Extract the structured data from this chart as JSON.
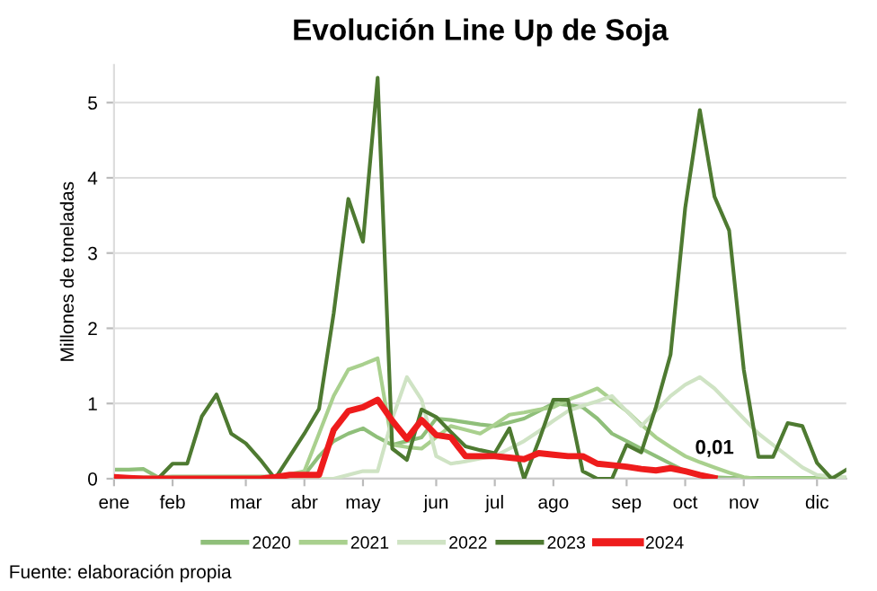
{
  "chart_data": {
    "type": "line",
    "title": "Evolución Line Up de Soja",
    "ylabel": "Millones de toneladas",
    "categories": [
      "ene",
      null,
      null,
      null,
      "feb",
      null,
      null,
      null,
      null,
      "mar",
      null,
      null,
      null,
      "abr",
      null,
      null,
      null,
      "may",
      null,
      null,
      null,
      null,
      "jun",
      null,
      null,
      null,
      "jul",
      null,
      null,
      null,
      "ago",
      null,
      null,
      null,
      null,
      "sep",
      null,
      null,
      null,
      "oct",
      null,
      null,
      null,
      "nov",
      null,
      null,
      null,
      null,
      "dic",
      null,
      null
    ],
    "ylim": [
      0,
      5.5
    ],
    "yticks": [
      0,
      1,
      2,
      3,
      4,
      5
    ],
    "grid": "y",
    "legend": "bottom",
    "marker": "none",
    "series": [
      {
        "name": "2020",
        "color": "#8fbf7a",
        "values": [
          0.12,
          0.12,
          0.13,
          0.02,
          0.03,
          0.03,
          0.03,
          0.03,
          0.03,
          0.03,
          0.03,
          0.03,
          0.03,
          0.05,
          0.3,
          0.5,
          0.6,
          0.67,
          0.55,
          0.45,
          0.5,
          0.55,
          0.8,
          0.78,
          0.75,
          0.72,
          0.7,
          0.75,
          0.8,
          0.9,
          1.0,
          0.98,
          0.95,
          0.8,
          0.6,
          0.5,
          0.4,
          0.3,
          0.2,
          0.1,
          0.05,
          0.02,
          0.01,
          0.01,
          0.01,
          0.01,
          0.01,
          0.01,
          0.01,
          0.01,
          0.01
        ]
      },
      {
        "name": "2021",
        "color": "#a9d08e",
        "values": [
          0.02,
          0.02,
          0.02,
          0.02,
          0.02,
          0.02,
          0.02,
          0.02,
          0.02,
          0.02,
          0.02,
          0.02,
          0.06,
          0.1,
          0.6,
          1.1,
          1.45,
          1.52,
          1.6,
          0.45,
          0.42,
          0.4,
          0.55,
          0.7,
          0.65,
          0.6,
          0.72,
          0.85,
          0.88,
          0.92,
          0.95,
          1.05,
          1.12,
          1.2,
          1.05,
          0.9,
          0.72,
          0.55,
          0.42,
          0.3,
          0.22,
          0.15,
          0.08,
          0.02,
          0,
          0,
          0,
          0,
          0,
          0,
          0
        ]
      },
      {
        "name": "2022",
        "color": "#cfe3c4",
        "values": [
          0.02,
          0,
          0,
          0,
          0,
          0,
          0,
          0,
          0,
          0,
          0,
          0,
          0,
          0,
          0,
          0,
          0.05,
          0.1,
          0.1,
          0.8,
          1.35,
          1.05,
          0.3,
          0.2,
          0.23,
          0.27,
          0.3,
          0.4,
          0.5,
          0.63,
          0.77,
          0.9,
          0.97,
          1.03,
          1.1,
          0.9,
          0.7,
          0.9,
          1.1,
          1.25,
          1.35,
          1.2,
          1.0,
          0.8,
          0.6,
          0.45,
          0.3,
          0.15,
          0.05,
          0.03,
          0.02
        ]
      },
      {
        "name": "2023",
        "color": "#4e7a31",
        "values": [
          0,
          0,
          0,
          0,
          0.2,
          0.2,
          0.83,
          1.12,
          0.6,
          0.47,
          0.25,
          0,
          0.3,
          0.6,
          0.93,
          2.2,
          3.72,
          3.15,
          5.33,
          0.4,
          0.25,
          0.92,
          0.82,
          0.62,
          0.43,
          0.38,
          0.34,
          0.67,
          0,
          0.5,
          1.05,
          1.05,
          0.1,
          0,
          0,
          0.45,
          0.35,
          0.95,
          1.65,
          3.6,
          4.9,
          3.75,
          3.3,
          1.45,
          0.29,
          0.29,
          0.74,
          0.7,
          0.21,
          0,
          0.12
        ]
      },
      {
        "name": "2024",
        "color": "#ee1c1c",
        "values": [
          0.02,
          0.01,
          0,
          0,
          0,
          0,
          0,
          0,
          0,
          0,
          0,
          0.02,
          0.05,
          0.05,
          0.05,
          0.65,
          0.9,
          0.95,
          1.05,
          0.77,
          0.53,
          0.78,
          0.58,
          0.55,
          0.3,
          0.3,
          0.3,
          0.28,
          0.26,
          0.34,
          0.32,
          0.3,
          0.3,
          0.2,
          0.18,
          0.16,
          0.13,
          0.11,
          0.14,
          0.1,
          0.05,
          0.01,
          null,
          null,
          null,
          null,
          null,
          null,
          null,
          null,
          null
        ],
        "value_labels": [
          null,
          null,
          null,
          null,
          null,
          null,
          null,
          null,
          null,
          null,
          null,
          null,
          null,
          null,
          null,
          null,
          null,
          null,
          null,
          null,
          null,
          null,
          null,
          null,
          null,
          null,
          null,
          null,
          null,
          null,
          null,
          null,
          null,
          null,
          null,
          null,
          null,
          null,
          null,
          null,
          null,
          "0,01",
          null,
          null,
          null,
          null,
          null,
          null,
          null,
          null,
          null
        ]
      }
    ],
    "annotations": [
      "Fuente: elaboración propia"
    ]
  }
}
